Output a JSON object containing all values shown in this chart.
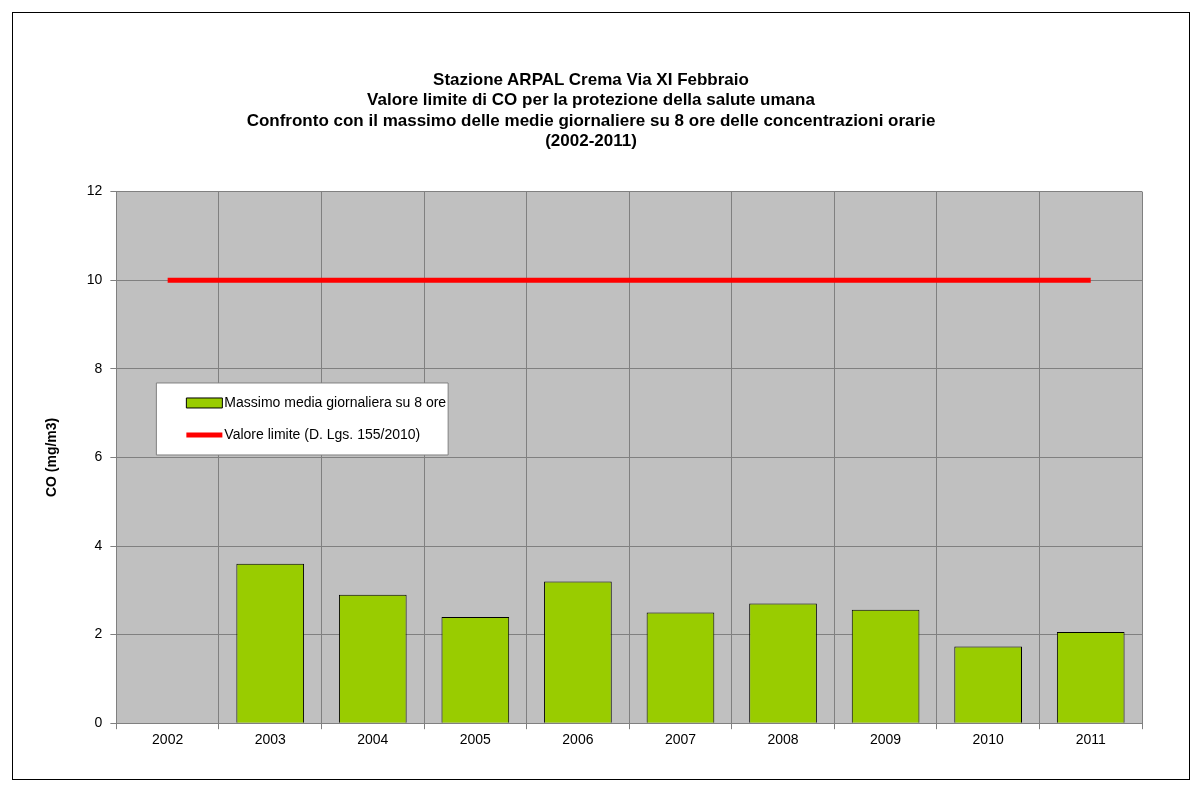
{
  "chart_data": {
    "type": "bar",
    "title": [
      "Stazione ARPAL Crema Via XI Febbraio",
      "Valore limite di CO per la protezione della salute umana",
      "Confronto con il massimo delle medie giornaliere su 8 ore delle concentrazioni orarie",
      "(2002-2011)"
    ],
    "ylabel": "CO (mg/m3)",
    "categories": [
      "2002",
      "2003",
      "2004",
      "2005",
      "2006",
      "2007",
      "2008",
      "2009",
      "2010",
      "2011"
    ],
    "series": [
      {
        "name": "Massimo media giornaliera su 8 ore",
        "color": "#99cc00",
        "values": [
          null,
          3.6,
          2.9,
          2.4,
          3.2,
          2.5,
          2.7,
          2.56,
          1.73,
          2.06
        ]
      },
      {
        "name": "Valore limite (D. Lgs. 155/2010)",
        "type": "line",
        "color": "#ff0000",
        "values": [
          10,
          10,
          10,
          10,
          10,
          10,
          10,
          10,
          10,
          10
        ]
      }
    ],
    "ylim": [
      0,
      12
    ],
    "yticks": [
      0,
      2,
      4,
      6,
      8,
      10,
      12
    ],
    "grid": true,
    "legend": "left"
  }
}
